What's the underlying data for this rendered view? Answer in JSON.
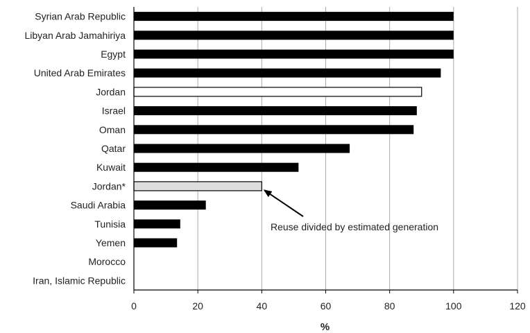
{
  "chart_data": {
    "type": "bar",
    "orientation": "horizontal",
    "categories": [
      "Syrian Arab Republic",
      "Libyan Arab Jamahiriya",
      "Egypt",
      "United Arab Emirates",
      "Jordan",
      "Israel",
      "Oman",
      "Qatar",
      "Kuwait",
      "Jordan*",
      "Saudi Arabia",
      "Tunisia",
      "Yemen",
      "Morocco",
      "Iran, Islamic Republic"
    ],
    "values": [
      100,
      100,
      100,
      96,
      90,
      88.5,
      87.5,
      67.5,
      51.5,
      40,
      22.5,
      14.5,
      13.5,
      0,
      0
    ],
    "bar_styles": [
      "solid",
      "solid",
      "solid",
      "solid",
      "outline",
      "solid",
      "solid",
      "solid",
      "solid",
      "light",
      "solid",
      "solid",
      "solid",
      "solid",
      "solid"
    ],
    "xlabel": "%",
    "xlim": [
      0,
      120
    ],
    "xticks": [
      0,
      20,
      40,
      60,
      80,
      100,
      120
    ],
    "grid": "vertical",
    "annotation": {
      "text": "Reuse divided by estimated generation",
      "points_to": "Jordan*"
    },
    "colors": {
      "solid": "#000000",
      "outline": "#ffffff",
      "light": "#dddddd",
      "grid": "#aaaaaa",
      "axis": "#000000"
    }
  }
}
